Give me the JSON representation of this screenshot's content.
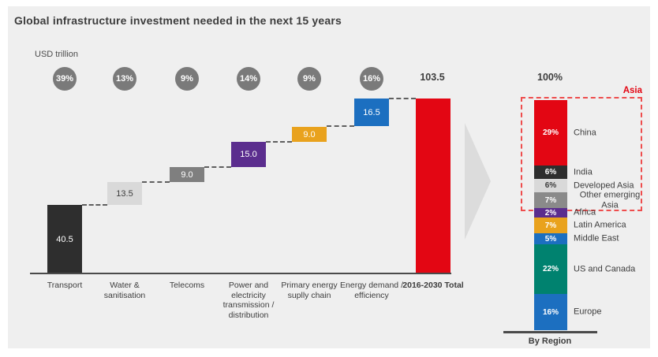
{
  "chart_data": [
    {
      "type": "bar",
      "subtype": "waterfall",
      "title": "Global infrastructure investment needed in the next 15 years",
      "unit": "USD trillion",
      "grid": false,
      "steps": [
        {
          "category": "Transport",
          "value": 40.5,
          "display": "40.5",
          "badge": "39%",
          "color": "#2e2e2e",
          "text_color": "#ffffff"
        },
        {
          "category": "Water & sanitisation",
          "value": 13.5,
          "display": "13.5",
          "badge": "13%",
          "color": "#d9d9d9",
          "text_color": "#3d3d3d"
        },
        {
          "category": "Telecoms",
          "value": 9.0,
          "display": "9.0",
          "badge": "9%",
          "color": "#7f7f7f",
          "text_color": "#ffffff"
        },
        {
          "category": "Power and electricity transmission / distribution",
          "value": 15.0,
          "display": "15.0",
          "badge": "14%",
          "color": "#5b2d8e",
          "text_color": "#ffffff"
        },
        {
          "category": "Primary energy suplly chain",
          "value": 9.0,
          "display": "9.0",
          "badge": "9%",
          "color": "#e9a21d",
          "text_color": "#ffffff"
        },
        {
          "category": "Energy demand / efficiency",
          "value": 16.5,
          "display": "16.5",
          "badge": "16%",
          "color": "#1c6fc0",
          "text_color": "#ffffff"
        }
      ],
      "total": {
        "category": "2016-2030 Total",
        "value": 103.5,
        "display": "103.5",
        "color": "#e30613"
      }
    },
    {
      "type": "bar",
      "subtype": "stacked-percent",
      "axis_label": "100%",
      "footer_label": "By Region",
      "group_box": {
        "label": "Asia",
        "segment_count": 4
      },
      "segments": [
        {
          "label": "China",
          "value": 29,
          "display": "29%",
          "color": "#e30613",
          "text_color": "#ffffff"
        },
        {
          "label": "India",
          "value": 6,
          "display": "6%",
          "color": "#2e2e2e",
          "text_color": "#ffffff"
        },
        {
          "label": "Developed Asia",
          "value": 6,
          "display": "6%",
          "color": "#d9d9d9",
          "text_color": "#3d3d3d"
        },
        {
          "label": "Other emerging Asia",
          "value": 7,
          "display": "7%",
          "color": "#8a8a8a",
          "text_color": "#ffffff"
        },
        {
          "label": "Africa",
          "value": 2,
          "display": "2%",
          "color": "#5b2d8e",
          "text_color": "#ffffff"
        },
        {
          "label": "Latin America",
          "value": 7,
          "display": "7%",
          "color": "#e9a21d",
          "text_color": "#ffffff"
        },
        {
          "label": "Middle East",
          "value": 5,
          "display": "5%",
          "color": "#1c6fc0",
          "text_color": "#ffffff"
        },
        {
          "label": "US and Canada",
          "value": 22,
          "display": "22%",
          "color": "#00826f",
          "text_color": "#ffffff"
        },
        {
          "label": "Europe",
          "value": 16,
          "display": "16%",
          "color": "#1c6fc0",
          "text_color": "#ffffff"
        }
      ]
    }
  ]
}
